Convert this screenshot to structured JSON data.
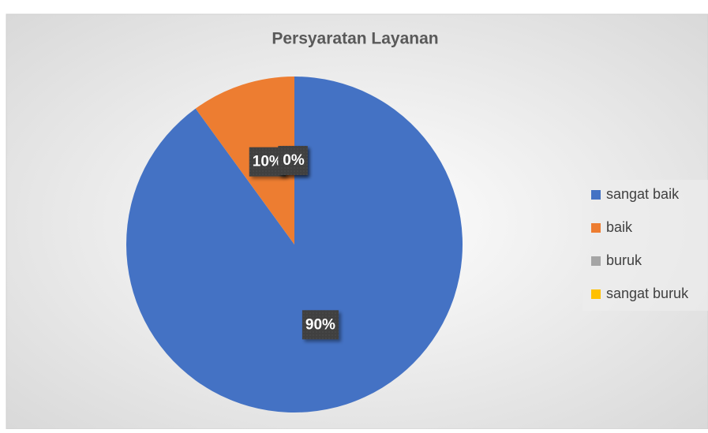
{
  "chart_data": {
    "type": "pie",
    "title": "Persyaratan Layanan",
    "categories": [
      "sangat baik",
      "baik",
      "buruk",
      "sangat buruk"
    ],
    "values": [
      90,
      10,
      0,
      0
    ],
    "value_labels": [
      "90%",
      "10%",
      "0%",
      "0%"
    ],
    "colors": [
      "#4472c4",
      "#ed7d31",
      "#a5a5a5",
      "#ffc000"
    ],
    "legend": "right"
  }
}
